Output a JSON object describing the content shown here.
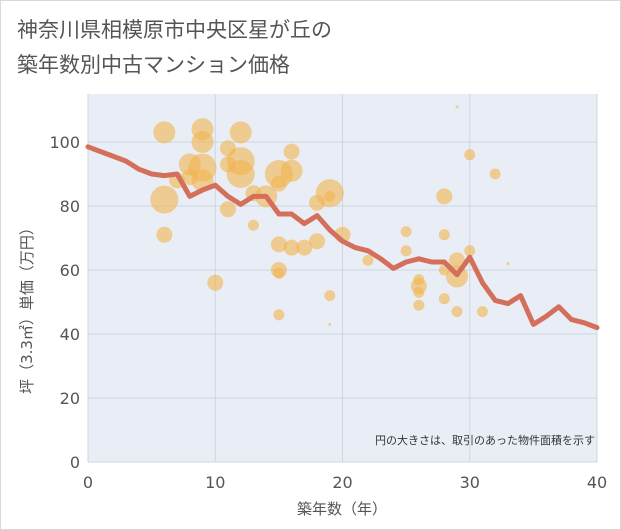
{
  "chart_data": {
    "type": "scatter",
    "title_lines": [
      "神奈川県相模原市中央区星が丘の",
      "築年数別中古マンション価格"
    ],
    "xlabel": "築年数（年）",
    "ylabel": "坪（3.3㎡）単価（万円）",
    "xlim": [
      0,
      40
    ],
    "ylim": [
      0,
      115
    ],
    "x_ticks": [
      0,
      10,
      20,
      30,
      40
    ],
    "y_ticks": [
      0,
      20,
      40,
      60,
      80,
      100
    ],
    "grid": true,
    "annotation": "円の大きさは、取引のあった物件面積を示す",
    "colors": {
      "bubble": "#f0b450",
      "line": "#d46f5b",
      "grid": "#d0d6df",
      "plot_bg": "#e9eef6"
    },
    "series": [
      {
        "kind": "bubble",
        "points": [
          {
            "x": 6,
            "y": 103,
            "s": 3
          },
          {
            "x": 6,
            "y": 82,
            "s": 4
          },
          {
            "x": 6,
            "y": 71,
            "s": 2
          },
          {
            "x": 7,
            "y": 88,
            "s": 2
          },
          {
            "x": 8,
            "y": 93,
            "s": 3
          },
          {
            "x": 8,
            "y": 89,
            "s": 2
          },
          {
            "x": 9,
            "y": 104,
            "s": 3
          },
          {
            "x": 9,
            "y": 100,
            "s": 3
          },
          {
            "x": 9,
            "y": 92,
            "s": 4
          },
          {
            "x": 9,
            "y": 88,
            "s": 3
          },
          {
            "x": 10,
            "y": 56,
            "s": 2
          },
          {
            "x": 11,
            "y": 98,
            "s": 2
          },
          {
            "x": 11,
            "y": 93,
            "s": 2
          },
          {
            "x": 11,
            "y": 79,
            "s": 2
          },
          {
            "x": 12,
            "y": 103,
            "s": 3
          },
          {
            "x": 12,
            "y": 94,
            "s": 4
          },
          {
            "x": 12,
            "y": 90,
            "s": 4
          },
          {
            "x": 13,
            "y": 84,
            "s": 2
          },
          {
            "x": 13,
            "y": 74,
            "s": 1
          },
          {
            "x": 14,
            "y": 83,
            "s": 3
          },
          {
            "x": 15,
            "y": 90,
            "s": 4
          },
          {
            "x": 15,
            "y": 87,
            "s": 2
          },
          {
            "x": 15,
            "y": 68,
            "s": 2
          },
          {
            "x": 15,
            "y": 60,
            "s": 2
          },
          {
            "x": 15,
            "y": 59,
            "s": 1
          },
          {
            "x": 15,
            "y": 46,
            "s": 1
          },
          {
            "x": 16,
            "y": 97,
            "s": 2
          },
          {
            "x": 16,
            "y": 91,
            "s": 3
          },
          {
            "x": 16,
            "y": 67,
            "s": 2
          },
          {
            "x": 17,
            "y": 67,
            "s": 2
          },
          {
            "x": 18,
            "y": 81,
            "s": 2
          },
          {
            "x": 18,
            "y": 69,
            "s": 2
          },
          {
            "x": 19,
            "y": 84,
            "s": 4
          },
          {
            "x": 19,
            "y": 83,
            "s": 1
          },
          {
            "x": 19,
            "y": 52,
            "s": 1
          },
          {
            "x": 19,
            "y": 43,
            "s": 0
          },
          {
            "x": 20,
            "y": 71,
            "s": 2
          },
          {
            "x": 22,
            "y": 63,
            "s": 1
          },
          {
            "x": 25,
            "y": 72,
            "s": 1
          },
          {
            "x": 25,
            "y": 66,
            "s": 1
          },
          {
            "x": 26,
            "y": 57,
            "s": 1
          },
          {
            "x": 26,
            "y": 55,
            "s": 2
          },
          {
            "x": 26,
            "y": 53,
            "s": 1
          },
          {
            "x": 26,
            "y": 49,
            "s": 1
          },
          {
            "x": 28,
            "y": 83,
            "s": 2
          },
          {
            "x": 28,
            "y": 71,
            "s": 1
          },
          {
            "x": 28,
            "y": 60,
            "s": 1
          },
          {
            "x": 28,
            "y": 51,
            "s": 1
          },
          {
            "x": 29,
            "y": 111,
            "s": 0
          },
          {
            "x": 29,
            "y": 63,
            "s": 2
          },
          {
            "x": 29,
            "y": 58,
            "s": 3
          },
          {
            "x": 29,
            "y": 47,
            "s": 1
          },
          {
            "x": 30,
            "y": 96,
            "s": 1
          },
          {
            "x": 30,
            "y": 66,
            "s": 1
          },
          {
            "x": 31,
            "y": 47,
            "s": 1
          },
          {
            "x": 32,
            "y": 90,
            "s": 1
          },
          {
            "x": 33,
            "y": 62,
            "s": 0
          }
        ]
      },
      {
        "kind": "line",
        "points": [
          [
            0,
            98.5
          ],
          [
            1,
            97
          ],
          [
            2,
            95.5
          ],
          [
            3,
            94
          ],
          [
            4,
            91.5
          ],
          [
            5,
            90
          ],
          [
            6,
            89.5
          ],
          [
            7,
            90
          ],
          [
            8,
            83
          ],
          [
            9,
            85
          ],
          [
            10,
            86.5
          ],
          [
            11,
            83
          ],
          [
            12,
            80.5
          ],
          [
            13,
            83
          ],
          [
            14,
            83
          ],
          [
            15,
            77.5
          ],
          [
            16,
            77.5
          ],
          [
            17,
            74.5
          ],
          [
            18,
            77
          ],
          [
            19,
            72.5
          ],
          [
            20,
            69
          ],
          [
            21,
            67
          ],
          [
            22,
            66
          ],
          [
            23,
            63.5
          ],
          [
            24,
            60.5
          ],
          [
            25,
            62.5
          ],
          [
            26,
            63.5
          ],
          [
            27,
            62.5
          ],
          [
            28,
            62.5
          ],
          [
            29,
            58.5
          ],
          [
            30,
            64
          ],
          [
            31,
            56
          ],
          [
            32,
            50.5
          ],
          [
            33,
            49.5
          ],
          [
            34,
            52
          ],
          [
            35,
            43
          ],
          [
            36,
            45.5
          ],
          [
            37,
            48.5
          ],
          [
            38,
            44.5
          ],
          [
            39,
            43.5
          ],
          [
            40,
            42
          ]
        ]
      }
    ]
  }
}
